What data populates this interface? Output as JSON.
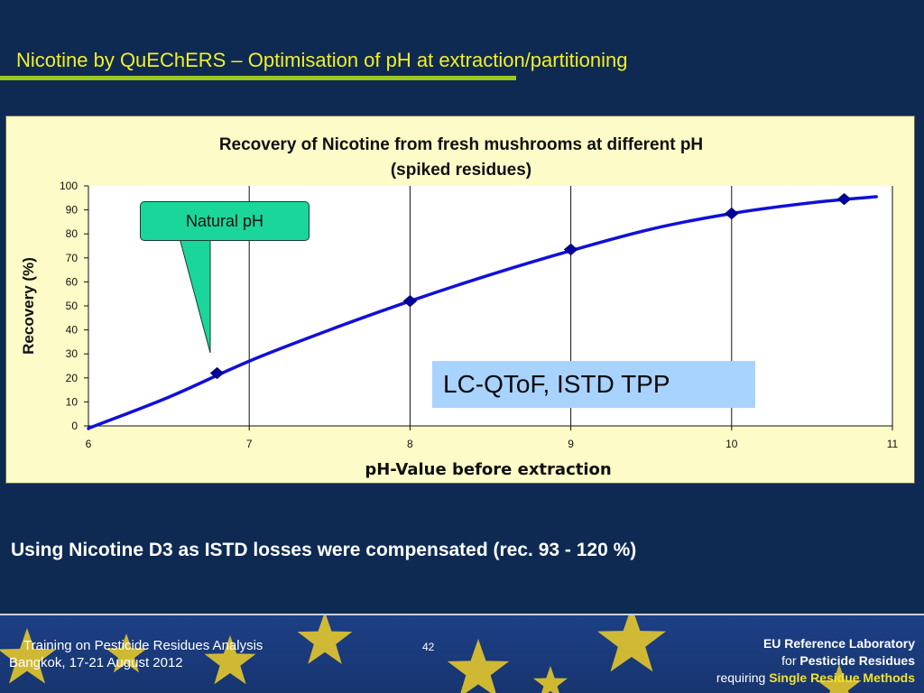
{
  "slide": {
    "title": "Nicotine by QuEChERS – Optimisation of pH at extraction/partitioning",
    "conclusion": "Using Nicotine D3 as ISTD losses were compensated (rec. 93 - 120 %)"
  },
  "annotations": {
    "natural_ph": "Natural pH",
    "method": "LC-QToF, ISTD TPP"
  },
  "footer": {
    "training": "Training on Pesticide Residues Analysis",
    "location": "Bangkok, 17-21 August 2012",
    "page_number": "42",
    "eurl_line1": "EU Reference Laboratory",
    "eurl_line2_prefix": "for",
    "eurl_line2_rest": "Pesticide Residues",
    "eurl_line3_prefix": "requiring",
    "eurl_line3_rest": "Single Residue Methods"
  },
  "colors": {
    "background": "#0e2a52",
    "title": "#f2ef2a",
    "chart_area": "#fdfcc8",
    "series": "#1010d8",
    "callout": "#1bd69a",
    "method_box": "#a9d3ff",
    "footer": "#1d3f86",
    "stars": "#f0d028"
  },
  "chart_data": {
    "type": "scatter",
    "title_line1": "Recovery of Nicotine from fresh mushrooms at different pH",
    "title_line2": "(spiked residues)",
    "xlabel": "pH-Value before extraction",
    "ylabel": "Recovery (%)",
    "xlim": [
      6,
      11
    ],
    "ylim": [
      0,
      100
    ],
    "xticks": [
      6,
      7,
      8,
      9,
      10,
      11
    ],
    "yticks": [
      0,
      10,
      20,
      30,
      40,
      50,
      60,
      70,
      80,
      90,
      100
    ],
    "grid": "vertical",
    "legend": "none",
    "series": [
      {
        "x": [
          6.8,
          8.0,
          9.0,
          10.0,
          10.7
        ],
        "y": [
          22,
          52,
          73.5,
          88.5,
          94.5
        ]
      }
    ],
    "trendline": {
      "x": [
        6.0,
        6.5,
        7.0,
        7.5,
        8.0,
        8.5,
        9.0,
        9.5,
        10.0,
        10.5,
        10.9
      ],
      "y": [
        -1,
        12,
        27,
        40,
        52,
        63,
        73,
        82,
        88.5,
        93,
        95.5
      ]
    }
  }
}
